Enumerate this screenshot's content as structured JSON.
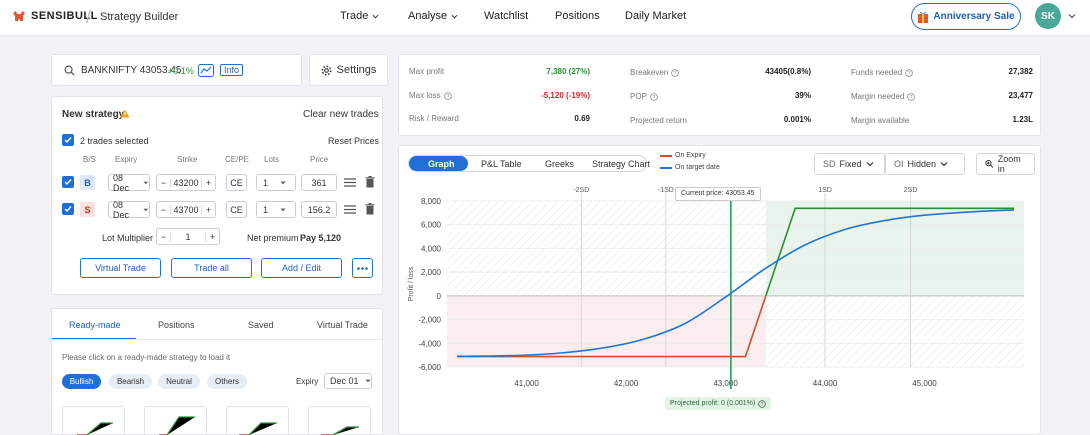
{
  "topbar": {
    "brand": "SENSIBULL",
    "title": "Strategy Builder",
    "nav": [
      "Trade",
      "Analyse",
      "Watchlist",
      "Positions",
      "Daily Market"
    ],
    "anniversary": "Anniversary Sale",
    "avatar": "SK"
  },
  "search": {
    "symbol": "BANKNIFTY 43053.45",
    "change": "+0.1%",
    "info": "Info",
    "settings": "Settings"
  },
  "strategy": {
    "title": "New strategy",
    "clear": "Clear new trades",
    "selected": "2 trades selected",
    "reset": "Reset Prices",
    "headers": [
      "B/S",
      "Expiry",
      "Strike",
      "CE/PE",
      "Lots",
      "Price"
    ],
    "trades": [
      {
        "side": "B",
        "expiry": "08 Dec",
        "strike": "43200",
        "type": "CE",
        "lots": "1",
        "price": "361"
      },
      {
        "side": "S",
        "expiry": "08 Dec",
        "strike": "43700",
        "type": "CE",
        "lots": "1",
        "price": "156.2"
      }
    ],
    "multiplier_label": "Lot Multiplier",
    "multiplier": "1",
    "net_premium_label": "Net premium",
    "net_premium": "Pay 5,120",
    "buttons": [
      "Virtual Trade",
      "Trade all",
      "Add / Edit"
    ]
  },
  "readymade": {
    "tabs": [
      "Ready-made",
      "Positions",
      "Saved",
      "Virtual Trade"
    ],
    "hint": "Please click on a ready-made strategy to load it",
    "chips": [
      "Bullish",
      "Bearish",
      "Neutral",
      "Others"
    ],
    "expiry_label": "Expiry",
    "expiry": "Dec 01"
  },
  "stats": [
    {
      "label": "Max profit",
      "value": "7,380 (27%)",
      "color": "#2e8b3c"
    },
    {
      "label": "Max loss",
      "value": "-5,120 (-19%)",
      "color": "#c62828"
    },
    {
      "label": "Risk / Reward",
      "value": "0.69",
      "color": "#222222"
    },
    {
      "label": "Breakeven",
      "value": "43405(0.8%)",
      "color": "#222222"
    },
    {
      "label": "POP",
      "value": "39%",
      "color": "#222222"
    },
    {
      "label": "Projected return",
      "value": "0.001%",
      "color": "#222222"
    },
    {
      "label": "Funds needed",
      "value": "27,382",
      "color": "#222222"
    },
    {
      "label": "Margin needed",
      "value": "23,477",
      "color": "#222222"
    },
    {
      "label": "Margin available",
      "value": "1.23L",
      "color": "#222222"
    }
  ],
  "chart_tabs": [
    "Graph",
    "P&L Table",
    "Greeks",
    "Strategy Chart"
  ],
  "legend": [
    "On Expiry",
    "On target date"
  ],
  "sd": {
    "label": "SD",
    "value": "Fixed"
  },
  "oi": {
    "label": "OI",
    "value": "Hidden"
  },
  "zoom": "Zoom in",
  "current_price": "Current price: 43053.45",
  "projected": "Projected profit: 0 (0.001%)",
  "chart_data": {
    "type": "line",
    "ylabel": "Profit / loss",
    "ylim": [
      -6000,
      8000
    ],
    "xlim": [
      40200,
      46000
    ],
    "yticks": [
      "8,000",
      "6,000",
      "4,000",
      "2,000",
      "0",
      "-2,000",
      "-4,000",
      "-6,000"
    ],
    "xticks": [
      "41,000",
      "42,000",
      "43,000",
      "44,000",
      "45,000"
    ],
    "sd_labels": [
      "-2SD",
      "-1SD",
      "1SD",
      "2SD"
    ],
    "sd_x": [
      41550,
      42400,
      44000,
      44860
    ],
    "current_price": 43053.45,
    "series": [
      {
        "name": "On Expiry",
        "color": "#d1502a",
        "x": [
          40300,
          43200,
          43700,
          45900
        ],
        "y": [
          -5120,
          -5120,
          7380,
          7380
        ]
      },
      {
        "name": "On target date",
        "color": "#1f77d0",
        "x": [
          40300,
          40800,
          41300,
          41800,
          42200,
          42600,
          43000,
          43400,
          43800,
          44200,
          44600,
          45000,
          45500,
          45900
        ],
        "y": [
          -5100,
          -5050,
          -4850,
          -4350,
          -3600,
          -2300,
          -100,
          2300,
          4300,
          5600,
          6350,
          6800,
          7100,
          7250
        ]
      }
    ]
  }
}
